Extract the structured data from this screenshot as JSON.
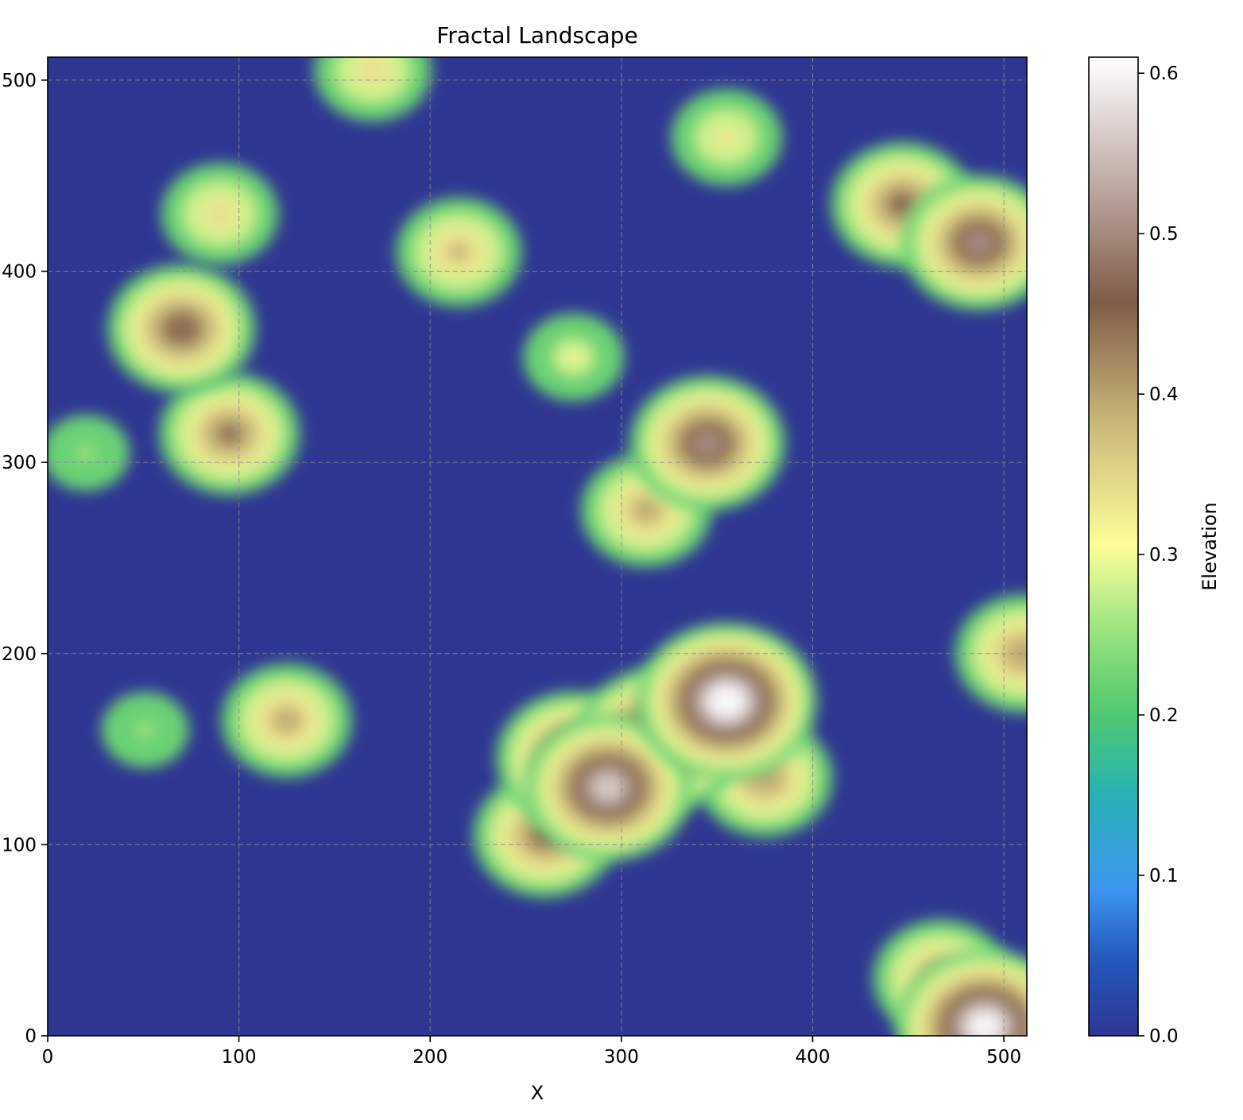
{
  "chart_data": {
    "type": "heatmap",
    "title": "Fractal Landscape",
    "xlabel": "X",
    "ylabel": "",
    "xlim": [
      0,
      512
    ],
    "ylim": [
      0,
      512
    ],
    "xticks": [
      0,
      100,
      200,
      300,
      400,
      500
    ],
    "yticks": [
      0,
      100,
      200,
      300,
      400,
      500
    ],
    "xtick_labels": [
      "0",
      "100",
      "200",
      "300",
      "400",
      "500"
    ],
    "ytick_labels": [
      "0",
      "100",
      "200",
      "300",
      "400",
      "500"
    ],
    "grid": true,
    "grid_style": "dashed",
    "colormap": "terrain",
    "colorbar": {
      "label": "Elevation",
      "range": [
        0.0,
        0.61
      ],
      "ticks": [
        0.0,
        0.1,
        0.2,
        0.3,
        0.4,
        0.5,
        0.6
      ],
      "tick_labels": [
        "0.0",
        "0.1",
        "0.2",
        "0.3",
        "0.4",
        "0.5",
        "0.6"
      ]
    },
    "background_value": 0.0,
    "peaks": [
      {
        "x": 355,
        "y": 175,
        "value": 0.61
      },
      {
        "x": 293,
        "y": 130,
        "value": 0.56
      },
      {
        "x": 320,
        "y": 155,
        "value": 0.55
      },
      {
        "x": 275,
        "y": 145,
        "value": 0.5
      },
      {
        "x": 345,
        "y": 310,
        "value": 0.5
      },
      {
        "x": 490,
        "y": 5,
        "value": 0.6
      },
      {
        "x": 487,
        "y": 415,
        "value": 0.5
      },
      {
        "x": 447,
        "y": 435,
        "value": 0.45
      },
      {
        "x": 70,
        "y": 370,
        "value": 0.47
      },
      {
        "x": 95,
        "y": 315,
        "value": 0.44
      },
      {
        "x": 260,
        "y": 105,
        "value": 0.45
      },
      {
        "x": 375,
        "y": 135,
        "value": 0.42
      },
      {
        "x": 313,
        "y": 275,
        "value": 0.4
      },
      {
        "x": 125,
        "y": 165,
        "value": 0.4
      },
      {
        "x": 215,
        "y": 410,
        "value": 0.38
      },
      {
        "x": 467,
        "y": 30,
        "value": 0.42
      },
      {
        "x": 510,
        "y": 200,
        "value": 0.42
      },
      {
        "x": 170,
        "y": 505,
        "value": 0.35
      },
      {
        "x": 355,
        "y": 470,
        "value": 0.33
      },
      {
        "x": 20,
        "y": 305,
        "value": 0.27
      },
      {
        "x": 51,
        "y": 160,
        "value": 0.27
      },
      {
        "x": 275,
        "y": 355,
        "value": 0.3
      },
      {
        "x": 90,
        "y": 430,
        "value": 0.35
      }
    ]
  }
}
